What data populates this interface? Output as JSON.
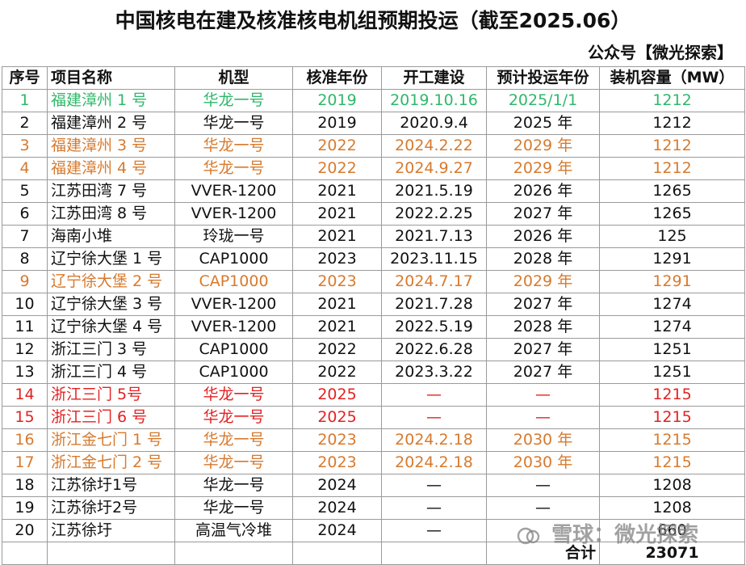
{
  "title": "中国核电在建及核准核电机组预期投运（截至2025.06）",
  "subtitle": "公众号【微光探索】",
  "headers": [
    "序号",
    "项目名称",
    "机型",
    "核准年份",
    "开工建设",
    "预计投运年份",
    "装机容量（MW）"
  ],
  "rows": [
    {
      "style": "green",
      "cells": [
        "1",
        "福建漳州 1 号",
        "华龙一号",
        "2019",
        "2019.10.16",
        "2025/1/1",
        "1212"
      ]
    },
    {
      "style": "normal",
      "cells": [
        "2",
        "福建漳州 2 号",
        "华龙一号",
        "2019",
        "2020.9.4",
        "2025 年",
        "1212"
      ]
    },
    {
      "style": "orange",
      "cells": [
        "3",
        "福建漳州 3 号",
        "华龙一号",
        "2022",
        "2024.2.22",
        "2029 年",
        "1212"
      ]
    },
    {
      "style": "orange",
      "cells": [
        "4",
        "福建漳州 4 号",
        "华龙一号",
        "2022",
        "2024.9.27",
        "2029 年",
        "1212"
      ]
    },
    {
      "style": "normal",
      "cells": [
        "5",
        "江苏田湾 7 号",
        "VVER-1200",
        "2021",
        "2021.5.19",
        "2026 年",
        "1265"
      ]
    },
    {
      "style": "normal",
      "cells": [
        "6",
        "江苏田湾 8 号",
        "VVER-1200",
        "2021",
        "2022.2.25",
        "2027 年",
        "1265"
      ]
    },
    {
      "style": "normal",
      "cells": [
        "7",
        "海南小堆",
        "玲珑一号",
        "2021",
        "2021.7.13",
        "2026 年",
        "125"
      ]
    },
    {
      "style": "normal",
      "cells": [
        "8",
        "辽宁徐大堡 1 号",
        "CAP1000",
        "2023",
        "2023.11.15",
        "2028 年",
        "1291"
      ]
    },
    {
      "style": "orange",
      "cells": [
        "9",
        "辽宁徐大堡 2 号",
        "CAP1000",
        "2023",
        "2024.7.17",
        "2029 年",
        "1291"
      ]
    },
    {
      "style": "normal",
      "cells": [
        "10",
        "辽宁徐大堡 3 号",
        "VVER-1200",
        "2021",
        "2021.7.28",
        "2027 年",
        "1274"
      ]
    },
    {
      "style": "normal",
      "cells": [
        "11",
        "辽宁徐大堡 4 号",
        "VVER-1200",
        "2021",
        "2022.5.19",
        "2028 年",
        "1274"
      ]
    },
    {
      "style": "normal",
      "cells": [
        "12",
        "浙江三门 3 号",
        "CAP1000",
        "2022",
        "2022.6.28",
        "2027 年",
        "1251"
      ]
    },
    {
      "style": "normal",
      "cells": [
        "13",
        "浙江三门 4 号",
        "CAP1000",
        "2022",
        "2023.3.22",
        "2027 年",
        "1251"
      ]
    },
    {
      "style": "red",
      "cells": [
        "14",
        "浙江三门 5号",
        "华龙一号",
        "2025",
        "—",
        "—",
        "1215"
      ]
    },
    {
      "style": "red",
      "cells": [
        "15",
        "浙江三门 6 号",
        "华龙一号",
        "2025",
        "—",
        "—",
        "1215"
      ]
    },
    {
      "style": "orange",
      "cells": [
        "16",
        "浙江金七门 1 号",
        "华龙一号",
        "2023",
        "2024.2.18",
        "2030 年",
        "1215"
      ]
    },
    {
      "style": "orange",
      "cells": [
        "17",
        "浙江金七门 2 号",
        "华龙一号",
        "2023",
        "2024.2.18",
        "2030 年",
        "1215"
      ]
    },
    {
      "style": "normal",
      "cells": [
        "18",
        "江苏徐圩1号",
        "华龙一号",
        "2024",
        "—",
        "—",
        "1208"
      ]
    },
    {
      "style": "normal",
      "cells": [
        "19",
        "江苏徐圩2号",
        "华龙一号",
        "2024",
        "—",
        "—",
        "1208"
      ]
    },
    {
      "style": "normal",
      "cells": [
        "20",
        "江苏徐圩",
        "高温气冷堆",
        "2024",
        "—",
        "",
        "660"
      ]
    }
  ],
  "total": {
    "label": "合计",
    "value": "23071"
  },
  "watermark": "雪球：微光探索",
  "colors": {
    "green": "#2fb86a",
    "orange": "#d77a2e",
    "red": "#e32222"
  }
}
